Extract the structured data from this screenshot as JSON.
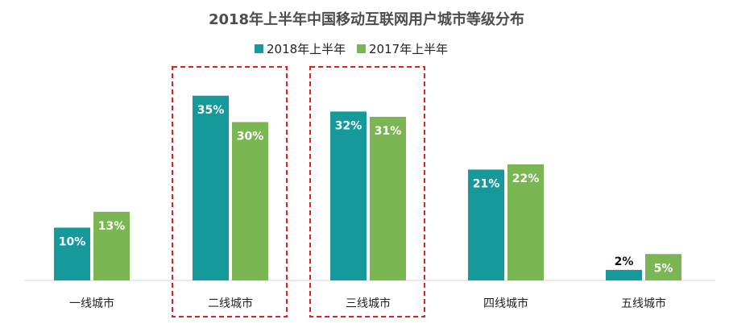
{
  "chart_data": {
    "type": "bar",
    "title": "2018年上半年中国移动互联网用户城市等级分布",
    "categories": [
      "一线城市",
      "二线城市",
      "三线城市",
      "四线城市",
      "五线城市"
    ],
    "series": [
      {
        "name": "2018年上半年",
        "values": [
          10,
          35,
          32,
          21,
          2
        ],
        "labels": [
          "10%",
          "35%",
          "32%",
          "21%",
          "2%"
        ],
        "color": "#15999a"
      },
      {
        "name": "2017年上半年",
        "values": [
          13,
          30,
          31,
          22,
          5
        ],
        "labels": [
          "13%",
          "30%",
          "31%",
          "22%",
          "5%"
        ],
        "color": "#7ab651"
      }
    ],
    "ylim": [
      0,
      40
    ],
    "grid": false,
    "legend_position": "top-center",
    "highlighted_categories": [
      "二线城市",
      "三线城市"
    ],
    "highlight_color": "#e02020"
  }
}
